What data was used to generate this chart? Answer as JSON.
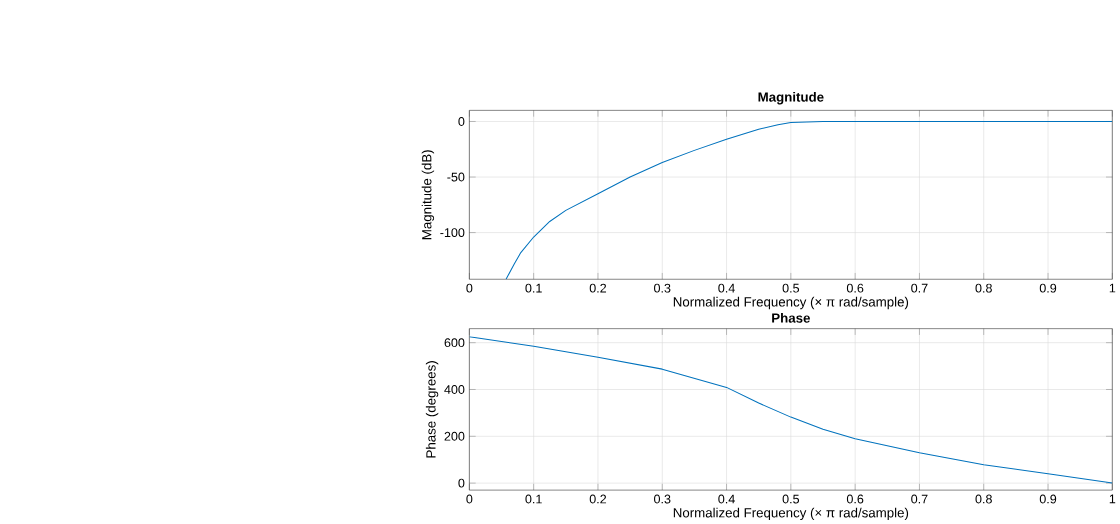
{
  "chart_data": [
    {
      "type": "line",
      "title": "Magnitude",
      "xlabel": "Normalized Frequency  (× π rad/sample)",
      "ylabel": "Magnitude (dB)",
      "xlim": [
        0,
        1
      ],
      "ylim": [
        -142,
        10
      ],
      "xticks": [
        0,
        0.1,
        0.2,
        0.3,
        0.4,
        0.5,
        0.6,
        0.7,
        0.8,
        0.9,
        1
      ],
      "yticks": [
        -100,
        -50,
        0
      ],
      "grid": true,
      "series": [
        {
          "color": "#0072bd",
          "x": [
            0.057,
            0.07,
            0.08,
            0.1,
            0.125,
            0.15,
            0.2,
            0.25,
            0.3,
            0.35,
            0.4,
            0.45,
            0.48,
            0.5,
            0.55,
            0.6,
            0.8,
            1.0
          ],
          "values": [
            -142,
            -128,
            -118,
            -104,
            -90,
            -80,
            -65,
            -50,
            -37,
            -26,
            -16,
            -7,
            -3,
            -1,
            0,
            0,
            0,
            0
          ]
        }
      ]
    },
    {
      "type": "line",
      "title": "Phase",
      "xlabel": "Normalized Frequency  (× π rad/sample)",
      "ylabel": "Phase (degrees)",
      "xlim": [
        0,
        1
      ],
      "ylim": [
        -30,
        660
      ],
      "xticks": [
        0,
        0.1,
        0.2,
        0.3,
        0.4,
        0.5,
        0.6,
        0.7,
        0.8,
        0.9,
        1
      ],
      "yticks": [
        0,
        200,
        400,
        600
      ],
      "grid": true,
      "series": [
        {
          "color": "#0072bd",
          "x": [
            0,
            0.1,
            0.2,
            0.3,
            0.4,
            0.45,
            0.5,
            0.55,
            0.6,
            0.7,
            0.8,
            0.9,
            1.0
          ],
          "values": [
            625,
            585,
            538,
            487,
            409,
            342,
            282,
            230,
            190,
            130,
            78,
            40,
            0
          ]
        }
      ]
    }
  ]
}
